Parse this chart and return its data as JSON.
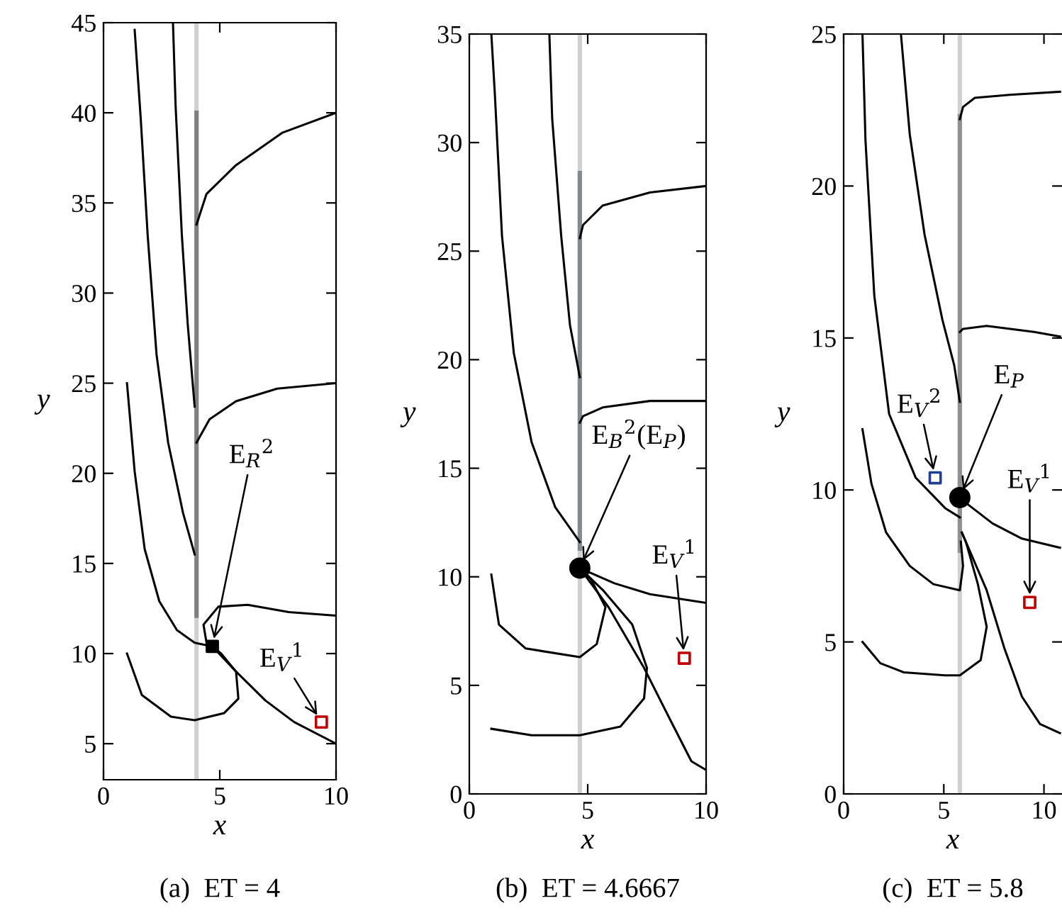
{
  "chart_data": [
    {
      "type": "line",
      "title": "(a)  ET = 4",
      "xlabel": "x",
      "ylabel": "y",
      "xlim": [
        0,
        10
      ],
      "ylim": [
        3,
        45
      ],
      "xticks": [
        0,
        5,
        10
      ],
      "yticks": [
        5,
        10,
        15,
        20,
        25,
        30,
        35,
        40,
        45
      ],
      "grid": false,
      "legend": false,
      "ref_lines": [
        {
          "axis": "x",
          "value": 4,
          "color": "#d0d0d0"
        }
      ],
      "series": [
        {
          "type": "line",
          "color": "#808080",
          "x": [
            4,
            4
          ],
          "values": [
            12.1,
            40
          ]
        },
        {
          "type": "line",
          "color": "#000000",
          "x": [
            1.34,
            1.6,
            1.9,
            2.28,
            2.78,
            3.42,
            3.92
          ],
          "values": [
            44.6,
            39.7,
            33.2,
            26.6,
            21.7,
            17.8,
            15.5
          ]
        },
        {
          "type": "line",
          "color": "#000000",
          "x": [
            2.99,
            3.1,
            3.37,
            3.62,
            3.92
          ],
          "values": [
            44.9,
            40.4,
            33.2,
            28.3,
            23.7
          ]
        },
        {
          "type": "line",
          "color": "#000000",
          "x": [
            1.01,
            1.34,
            1.77,
            2.4,
            3.16,
            3.92,
            4.68
          ],
          "values": [
            25,
            20.1,
            15.8,
            12.9,
            11.3,
            10.6,
            10.4
          ]
        },
        {
          "type": "line",
          "color": "#000000",
          "x": [
            10,
            7.7,
            5.7,
            4.43,
            4.0
          ],
          "values": [
            40,
            38.9,
            37.1,
            35.5,
            33.8
          ]
        },
        {
          "type": "line",
          "color": "#000000",
          "x": [
            10,
            7.47,
            5.7,
            4.56,
            4.0
          ],
          "values": [
            25,
            24.7,
            24,
            23,
            21.7
          ]
        },
        {
          "type": "line",
          "color": "#000000",
          "x": [
            10,
            7.97,
            6.2,
            4.94,
            4.3,
            4.43,
            4.68
          ],
          "values": [
            12.1,
            12.3,
            12.7,
            12.6,
            11.6,
            10.6,
            10.4
          ]
        },
        {
          "type": "line",
          "color": "#000000",
          "x": [
            4.68,
            5.7,
            6.96,
            8.2,
            10
          ],
          "values": [
            10.4,
            9,
            7.4,
            6.2,
            5
          ]
        },
        {
          "type": "line",
          "color": "#000000",
          "x": [
            1.01,
            1.65,
            2.9,
            3.92,
            5.19,
            5.8,
            5.7,
            5.06,
            4.68
          ],
          "values": [
            10,
            7.7,
            6.5,
            6.3,
            6.7,
            7.5,
            9,
            10,
            10.4
          ]
        },
        {
          "type": "scatter",
          "marker": "square",
          "color": "#000000",
          "x": [
            4.68
          ],
          "values": [
            10.4
          ]
        },
        {
          "type": "scatter",
          "marker": "square",
          "color": "#c00000",
          "x": [
            9.37
          ],
          "values": [
            6.2
          ]
        }
      ],
      "annotations": [
        {
          "text": "E$_{R}$$^{2}$",
          "x": 4.68,
          "y": 10.4
        },
        {
          "text": "E$_{V}$$^{1}$",
          "x": 9.37,
          "y": 6.2
        }
      ]
    },
    {
      "type": "line",
      "title": "(b)  ET = 4.6667",
      "xlabel": "x",
      "ylabel": "y",
      "xlim": [
        0,
        10
      ],
      "ylim": [
        0,
        35
      ],
      "xticks": [
        0,
        5,
        10
      ],
      "yticks": [
        0,
        5,
        10,
        15,
        20,
        25,
        30,
        35
      ],
      "grid": false,
      "legend": false,
      "ref_lines": [
        {
          "axis": "x",
          "value": 4.6667,
          "color": "#d0d0d0"
        }
      ],
      "series": [
        {
          "type": "line",
          "color": "#808a90",
          "x": [
            4.6667,
            4.6667
          ],
          "values": [
            11.3,
            28.6
          ]
        },
        {
          "type": "line",
          "color": "#000000",
          "x": [
            0.93,
            1.08,
            1.38,
            1.88,
            2.63,
            3.63,
            4.6667
          ],
          "values": [
            35,
            32.2,
            25.7,
            20.3,
            16.2,
            13.2,
            11.6
          ]
        },
        {
          "type": "line",
          "color": "#000000",
          "x": [
            3.38,
            3.5,
            3.88,
            4.25,
            4.6667
          ],
          "values": [
            35,
            31.1,
            25.7,
            21.6,
            19.2
          ]
        },
        {
          "type": "line",
          "color": "#000000",
          "x": [
            10,
            7.63,
            5.63,
            4.8,
            4.6667
          ],
          "values": [
            28,
            27.7,
            27.1,
            26.2,
            25.6
          ]
        },
        {
          "type": "line",
          "color": "#000000",
          "x": [
            10,
            7.63,
            5.63,
            4.8,
            4.6667
          ],
          "values": [
            18.1,
            18.1,
            17.8,
            17.4,
            17.1
          ]
        },
        {
          "type": "line",
          "color": "#000000",
          "x": [
            10,
            7.63,
            6.13,
            4.88,
            4.6667
          ],
          "values": [
            8.8,
            9.2,
            9.7,
            10.3,
            10.4
          ]
        },
        {
          "type": "line",
          "color": "#000000",
          "x": [
            0.93,
            1.25,
            2.38,
            4.6667,
            5.38,
            5.75,
            5.13,
            4.6667
          ],
          "values": [
            10.1,
            7.8,
            6.7,
            6.3,
            6.9,
            8.6,
            9.9,
            10.4
          ]
        },
        {
          "type": "line",
          "color": "#000000",
          "x": [
            0.93,
            2.63,
            4.6667,
            6.38,
            7.38,
            7.5,
            6.88,
            5.63,
            4.6667
          ],
          "values": [
            3.0,
            2.7,
            2.7,
            3.1,
            4.4,
            5.8,
            7.8,
            9.4,
            10.4
          ]
        },
        {
          "type": "line",
          "color": "#000000",
          "x": [
            4.6667,
            5.88,
            7.38,
            8.63,
            9.38,
            10
          ],
          "values": [
            10.4,
            8.6,
            5.8,
            3.1,
            1.5,
            1.1
          ]
        },
        {
          "type": "scatter",
          "marker": "circle",
          "color": "#000000",
          "x": [
            4.6667
          ],
          "values": [
            10.4
          ]
        },
        {
          "type": "scatter",
          "marker": "square",
          "color": "#c00000",
          "x": [
            9.08
          ],
          "values": [
            6.25
          ]
        }
      ],
      "annotations": [
        {
          "text": "E$_{B}$$^{2}$(E$_{P}$)",
          "x": 4.6667,
          "y": 10.4
        },
        {
          "text": "E$_{V}$$^{1}$",
          "x": 9.08,
          "y": 6.25
        }
      ]
    },
    {
      "type": "line",
      "title": "(c)  ET = 5.8",
      "xlabel": "x",
      "ylabel": "y",
      "xlim": [
        0,
        10.9
      ],
      "ylim": [
        0,
        25
      ],
      "xticks": [
        0,
        5,
        10
      ],
      "yticks": [
        0,
        5,
        10,
        15,
        20,
        25
      ],
      "grid": false,
      "legend": false,
      "ref_lines": [
        {
          "axis": "x",
          "value": 5.8,
          "color": "#d0d0d0"
        }
      ],
      "series": [
        {
          "type": "line",
          "color": "#909090",
          "x": [
            5.8,
            5.8
          ],
          "values": [
            8.0,
            22.3
          ]
        },
        {
          "type": "line",
          "color": "#000000",
          "x": [
            0.94,
            1.09,
            1.53,
            2.27,
            3.6,
            5.07,
            5.8
          ],
          "values": [
            25,
            21.5,
            16.4,
            12.5,
            10.4,
            9.4,
            9.1
          ]
        },
        {
          "type": "line",
          "color": "#000000",
          "x": [
            2.86,
            3.3,
            4.04,
            4.93,
            5.52,
            5.8
          ],
          "values": [
            25,
            21.7,
            18.4,
            15.6,
            14.1,
            12.9
          ]
        },
        {
          "type": "line",
          "color": "#000000",
          "x": [
            10.8,
            8.3,
            6.55,
            5.96,
            5.8
          ],
          "values": [
            23.1,
            23.0,
            22.9,
            22.6,
            22.2
          ]
        },
        {
          "type": "line",
          "color": "#000000",
          "x": [
            10.8,
            9.5,
            7.14,
            5.96,
            5.8
          ],
          "values": [
            15.05,
            15.2,
            15.4,
            15.3,
            15.2
          ]
        },
        {
          "type": "line",
          "color": "#000000",
          "x": [
            10.8,
            8.9,
            7.43,
            6.25,
            5.8
          ],
          "values": [
            8.1,
            8.4,
            8.9,
            9.5,
            9.75
          ]
        },
        {
          "type": "line",
          "color": "#000000",
          "x": [
            0.94,
            1.39,
            2.12,
            3.3,
            4.48,
            5.8,
            5.96,
            5.85
          ],
          "values": [
            12,
            10.2,
            8.6,
            7.5,
            6.9,
            6.7,
            7.5,
            8.3
          ]
        },
        {
          "type": "line",
          "color": "#000000",
          "x": [
            0.94,
            1.83,
            3.0,
            5.07,
            5.8,
            6.84,
            7.14,
            6.7,
            6.1,
            5.9
          ],
          "values": [
            5,
            4.3,
            4.0,
            3.9,
            3.9,
            4.4,
            5.5,
            6.9,
            8.3,
            8.6
          ]
        },
        {
          "type": "line",
          "color": "#000000",
          "x": [
            5.9,
            7.14,
            8.02,
            8.9,
            9.8,
            10.8
          ],
          "values": [
            8.6,
            6.7,
            4.8,
            3.2,
            2.3,
            2.0
          ]
        },
        {
          "type": "scatter",
          "marker": "circle",
          "color": "#000000",
          "x": [
            5.8
          ],
          "values": [
            9.75
          ]
        },
        {
          "type": "scatter",
          "marker": "square",
          "color": "#1f3f8f",
          "x": [
            4.57
          ],
          "values": [
            10.4
          ]
        },
        {
          "type": "scatter",
          "marker": "square",
          "color": "#c00000",
          "x": [
            9.29
          ],
          "values": [
            6.3
          ]
        }
      ],
      "annotations": [
        {
          "text": "E$_{V}$$^{2}$",
          "x": 4.57,
          "y": 10.4
        },
        {
          "text": "E$_{P}$",
          "x": 5.8,
          "y": 9.75
        },
        {
          "text": "E$_{V}$$^{1}$",
          "x": 9.29,
          "y": 6.3
        }
      ]
    }
  ]
}
